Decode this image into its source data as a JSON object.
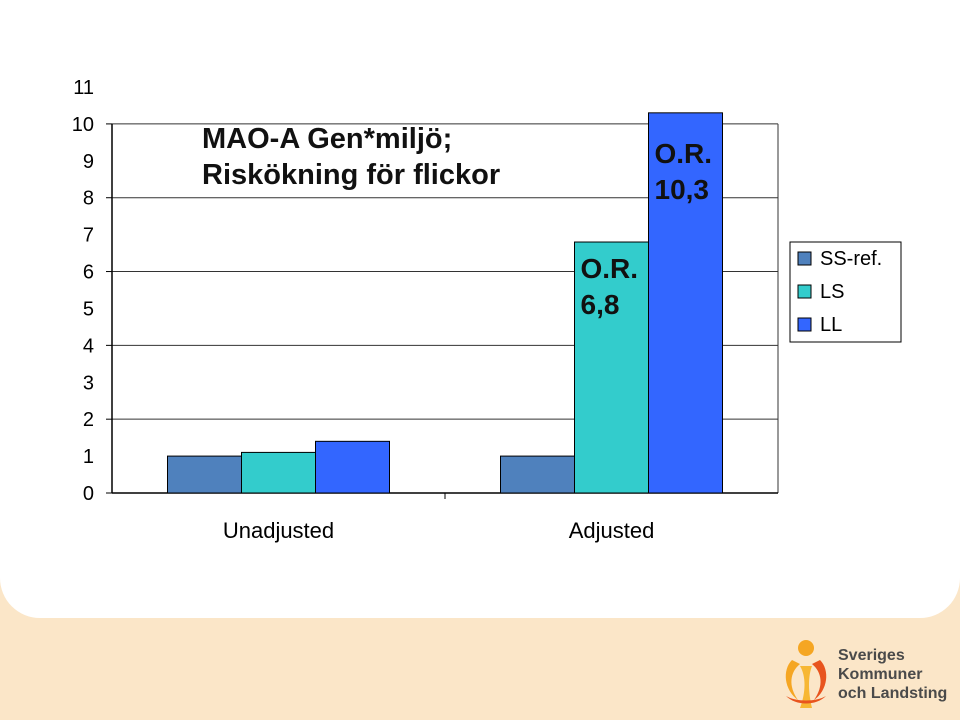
{
  "chart_data": {
    "type": "bar",
    "title": [
      "MAO-A Gen*miljö;",
      "Riskökning för flickor"
    ],
    "categories": [
      "Unadjusted",
      "Adjusted"
    ],
    "series": [
      {
        "name": "SS-ref.",
        "color": "#4f81bd",
        "values": [
          1,
          1
        ]
      },
      {
        "name": "LS",
        "color": "#33cccc",
        "values": [
          1.1,
          6.8
        ]
      },
      {
        "name": "LL",
        "color": "#3366ff",
        "values": [
          1.4,
          10.3
        ]
      }
    ],
    "yticks": [
      "0",
      "1",
      "2",
      "3",
      "4",
      "5",
      "6",
      "7",
      "8",
      "9",
      "10",
      "11"
    ],
    "ylim": [
      0,
      11
    ],
    "grid": true,
    "legend_position": "right",
    "annotations": [
      {
        "lines": [
          "O.R.",
          "6,8"
        ],
        "category": 1,
        "series": 1
      },
      {
        "lines": [
          "O.R.",
          "10,3"
        ],
        "category": 1,
        "series": 2
      }
    ]
  },
  "logo": {
    "lines": [
      "Sveriges",
      "Kommuner",
      "och Landsting"
    ],
    "colors": [
      "#f5a623",
      "#e8541e"
    ]
  }
}
